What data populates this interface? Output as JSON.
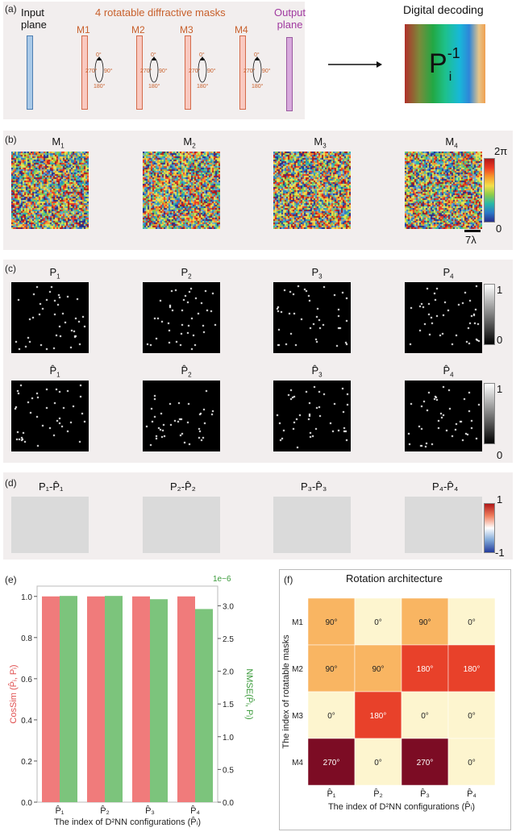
{
  "panel_a": {
    "label": "(a)",
    "input_plane": [
      "Input",
      "plane"
    ],
    "title": "4 rotatable diffractive masks",
    "masks": [
      "M1",
      "M2",
      "M3",
      "M4"
    ],
    "angles": {
      "top": "0°",
      "left": "270°",
      "right": "90°",
      "bottom": "180°"
    },
    "output_plane": [
      "Output",
      "plane"
    ],
    "decoding_title": "Digital decoding",
    "decoding_symbol": "P",
    "decoding_sup": "-1",
    "decoding_sub": "i"
  },
  "panel_b": {
    "label": "(b)",
    "titles": [
      "M",
      "M",
      "M",
      "M"
    ],
    "subs": [
      "1",
      "2",
      "3",
      "4"
    ],
    "colorbar_top": "2π",
    "colorbar_bottom": "0",
    "scale": "7λ"
  },
  "panel_c": {
    "label": "(c)",
    "row1_titles": [
      "P",
      "P",
      "P",
      "P"
    ],
    "row2_titles": [
      "P̂",
      "P̂",
      "P̂",
      "P̂"
    ],
    "subs": [
      "1",
      "2",
      "3",
      "4"
    ],
    "colorbar_top": "1",
    "colorbar_bottom": "0"
  },
  "panel_d": {
    "label": "(d)",
    "titles": [
      "P₁-P̂₁",
      "P₂-P̂₂",
      "P₃-P̂₃",
      "P₄-P̂₄"
    ],
    "colorbar_top": "1",
    "colorbar_bottom": "-1"
  },
  "colors": {
    "cossim_bar": "#f07b7b",
    "nmse_bar": "#7cc47c",
    "nmse_axis": "#3a9a3a",
    "cossim_axis": "#e05050",
    "mask_stroke": "#d46a4a",
    "mask_fill": "#f9c9c0",
    "input_fill": "#a9c9e8",
    "output_fill": "#d7a9dc",
    "output_label": "#a03aa0",
    "mask_label": "#c8602c"
  },
  "chart_data": [
    {
      "type": "bar",
      "label": "(e)",
      "categories": [
        "P̂₁",
        "P̂₂",
        "P̂₃",
        "P̂₄"
      ],
      "xlabel": "The index of D²NN configurations (P̂ᵢ)",
      "ylabel_left": "CosSim (P̂ᵢ, Pᵢ)",
      "ylabel_right": "NMSE(P̂ᵢ, Pᵢ)",
      "right_axis_multiplier": "1e−6",
      "left_ylim": [
        0,
        1.05
      ],
      "right_ylim": [
        0,
        3.3
      ],
      "left_ticks": [
        "0.0",
        "0.2",
        "0.4",
        "0.6",
        "0.8",
        "1.0"
      ],
      "right_ticks": [
        "0.0",
        "0.5",
        "1.0",
        "1.5",
        "2.0",
        "2.5",
        "3.0"
      ],
      "series": [
        {
          "axis": "left",
          "values": [
            1.0,
            1.0,
            1.0,
            1.0
          ]
        },
        {
          "axis": "right",
          "values": [
            3.15,
            3.15,
            3.1,
            2.95
          ]
        }
      ]
    },
    {
      "type": "heatmap",
      "label": "(f)",
      "title": "Rotation architecture",
      "ylabel": "The index of rotatable masks",
      "xlabel": "The index of D²NN configurations (P̂ᵢ)",
      "rows": [
        "M1",
        "M2",
        "M3",
        "M4"
      ],
      "cols": [
        "P̂₁",
        "P̂₂",
        "P̂₃",
        "P̂₄"
      ],
      "values": [
        [
          "90°",
          "0°",
          "90°",
          "0°"
        ],
        [
          "90°",
          "90°",
          "180°",
          "180°"
        ],
        [
          "0°",
          "180°",
          "0°",
          "0°"
        ],
        [
          "270°",
          "0°",
          "270°",
          "0°"
        ]
      ],
      "cell_colors": {
        "0°": "#fdf5cf",
        "90°": "#f9b562",
        "180°": "#e8412a",
        "270°": "#7c0c24"
      }
    }
  ]
}
